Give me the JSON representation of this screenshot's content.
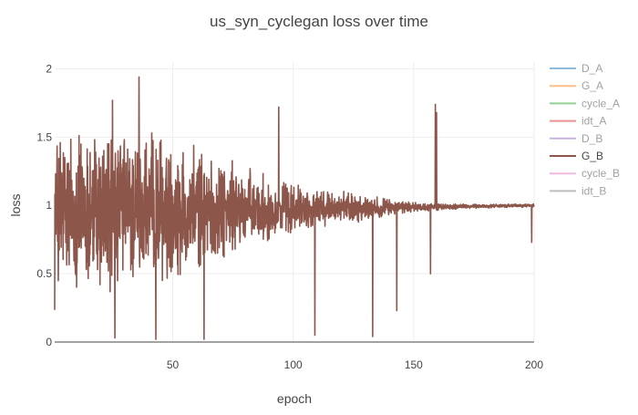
{
  "chart_data": {
    "type": "line",
    "title": "us_syn_cyclegan loss over time",
    "xlabel": "epoch",
    "ylabel": "loss",
    "xlim": [
      1,
      200
    ],
    "ylim": [
      0,
      2.05
    ],
    "grid": true,
    "legend_position": "right",
    "x_ticks": [
      50,
      100,
      150,
      200
    ],
    "x_tick_labels": [
      "50",
      "100",
      "150",
      "200"
    ],
    "y_ticks": [
      0,
      0.5,
      1,
      1.5,
      2
    ],
    "y_tick_labels": [
      "0",
      "0.5",
      "1",
      "1.5",
      "2"
    ],
    "visible_series": "G_B",
    "series": [
      {
        "name": "D_A",
        "color": "#1f77b4",
        "visible": false
      },
      {
        "name": "G_A",
        "color": "#ff7f0e",
        "visible": false
      },
      {
        "name": "cycle_A",
        "color": "#2ca02c",
        "visible": false
      },
      {
        "name": "idt_A",
        "color": "#d62728",
        "visible": false
      },
      {
        "name": "D_B",
        "color": "#9467bd",
        "visible": false
      },
      {
        "name": "G_B",
        "color": "#8c564b",
        "visible": true,
        "noise_envelope": {
          "x": [
            1,
            10,
            20,
            30,
            40,
            50,
            60,
            70,
            80,
            90,
            100,
            110,
            120,
            130,
            140,
            150,
            160,
            170,
            180,
            190,
            200
          ],
          "amplitude": [
            0.55,
            0.52,
            0.5,
            0.47,
            0.44,
            0.4,
            0.36,
            0.3,
            0.24,
            0.19,
            0.15,
            0.12,
            0.1,
            0.08,
            0.05,
            0.03,
            0.02,
            0.015,
            0.012,
            0.01,
            0.01
          ],
          "center": 0.95
        },
        "peaks": [
          {
            "x": 25,
            "y": 1.77
          },
          {
            "x": 36,
            "y": 1.94
          },
          {
            "x": 94,
            "y": 1.72
          },
          {
            "x": 159,
            "y": 1.74
          },
          {
            "x": 159.5,
            "y": 1.68
          }
        ],
        "dips": [
          {
            "x": 26,
            "y": 0.03
          },
          {
            "x": 43,
            "y": 0.02
          },
          {
            "x": 63,
            "y": 0.02
          },
          {
            "x": 109,
            "y": 0.05
          },
          {
            "x": 133,
            "y": 0.04
          },
          {
            "x": 143,
            "y": 0.23
          },
          {
            "x": 157,
            "y": 0.5
          },
          {
            "x": 199,
            "y": 0.73
          }
        ]
      },
      {
        "name": "cycle_B",
        "color": "#e377c2",
        "visible": false
      },
      {
        "name": "idt_B",
        "color": "#7f7f7f",
        "visible": false
      }
    ]
  }
}
